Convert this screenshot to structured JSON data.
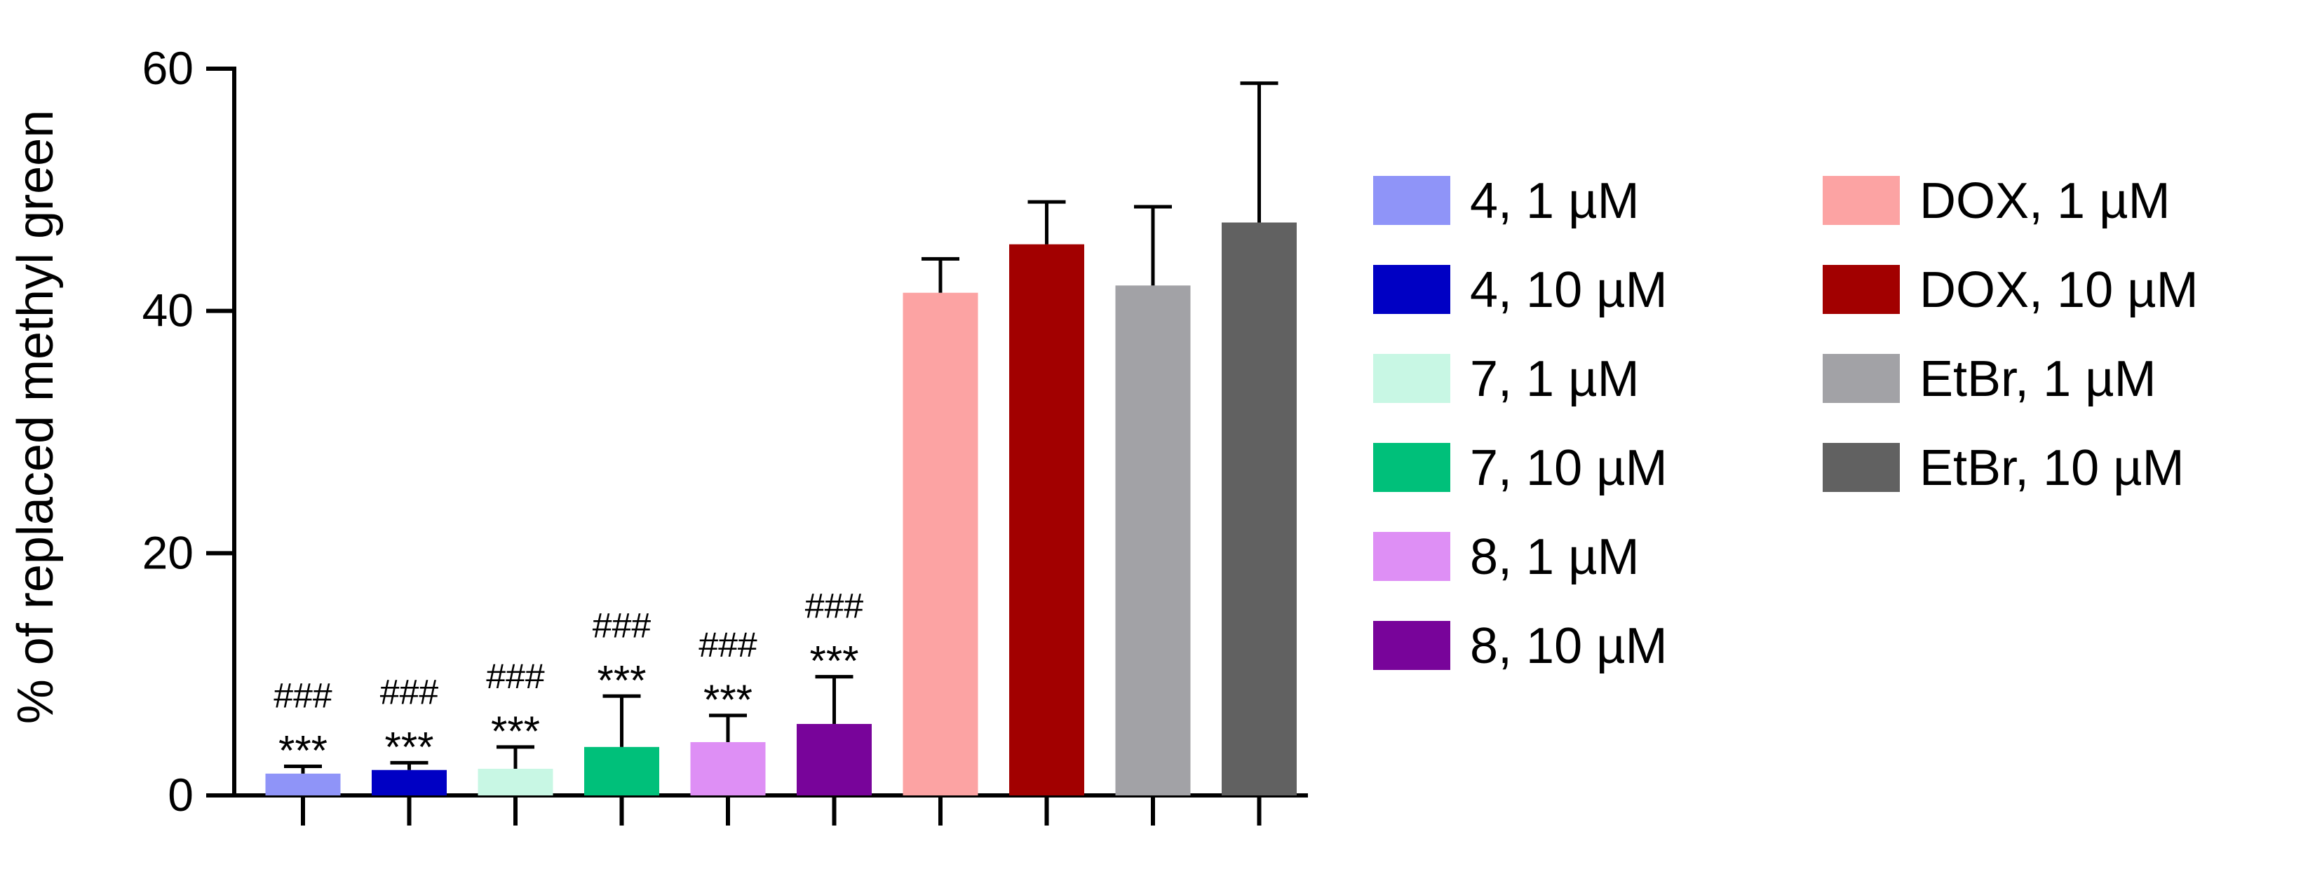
{
  "chart_data": {
    "type": "bar",
    "title": "",
    "xlabel": "",
    "ylabel": "% of replaced methyl green",
    "ylim": [
      0,
      60
    ],
    "yticks": [
      0,
      20,
      40,
      60
    ],
    "grid": false,
    "legend_placement": "right",
    "error_bars": "upper",
    "series": [
      {
        "name": "4, 1 µM",
        "value": 1.8,
        "error": 0.6,
        "color": "#8f94f8",
        "marks": [
          "###",
          "***"
        ]
      },
      {
        "name": "4, 10 µM",
        "value": 2.1,
        "error": 0.6,
        "color": "#0000c4",
        "marks": [
          "###",
          "***"
        ]
      },
      {
        "name": "7, 1 µM",
        "value": 2.2,
        "error": 1.8,
        "color": "#c8f7e4",
        "marks": [
          "###",
          "***"
        ]
      },
      {
        "name": "7, 10 µM",
        "value": 4.0,
        "error": 4.2,
        "color": "#00c07a",
        "marks": [
          "###",
          "***"
        ]
      },
      {
        "name": "8, 1 µM",
        "value": 4.4,
        "error": 2.2,
        "color": "#de8ff5",
        "marks": [
          "###",
          "***"
        ]
      },
      {
        "name": "8, 10 µM",
        "value": 5.9,
        "error": 3.9,
        "color": "#78049a",
        "marks": [
          "###",
          "***"
        ]
      },
      {
        "name": "DOX, 1 µM",
        "value": 41.5,
        "error": 2.8,
        "color": "#fca3a3",
        "marks": []
      },
      {
        "name": "DOX, 10 µM",
        "value": 45.5,
        "error": 3.5,
        "color": "#a20000",
        "marks": []
      },
      {
        "name": "EtBr, 1 µM",
        "value": 42.1,
        "error": 6.5,
        "color": "#a2a2a6",
        "marks": []
      },
      {
        "name": "EtBr, 10 µM",
        "value": 47.3,
        "error": 11.5,
        "color": "#616161",
        "marks": []
      }
    ]
  }
}
